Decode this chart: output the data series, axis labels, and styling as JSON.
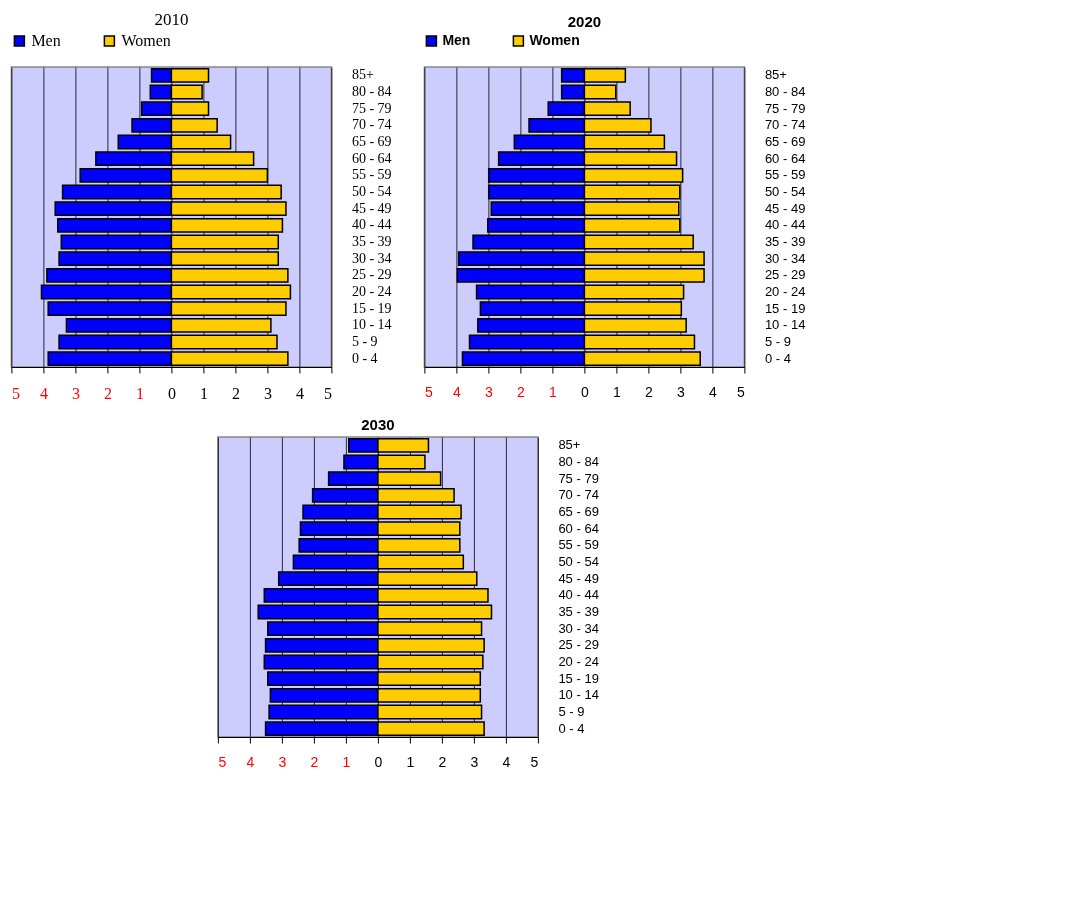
{
  "chart_data": [
    {
      "type": "bar",
      "orientation": "horizontal",
      "stacked": true,
      "title": "2010",
      "legend": "top",
      "grid": "x",
      "categories": [
        "85+",
        "80 - 84",
        "75 - 79",
        "70 - 74",
        "65 - 69",
        "60 - 64",
        "55 - 59",
        "50 - 54",
        "45 - 49",
        "40 - 44",
        "35 - 39",
        "30 - 34",
        "25 - 29",
        "20 - 24",
        "15 - 19",
        "10 - 14",
        "5 - 9",
        "0 - 4"
      ],
      "series": [
        {
          "name": "Men",
          "color": "#0000ff",
          "values": [
            -0.62,
            -0.66,
            -0.93,
            -1.23,
            -1.66,
            -2.36,
            -2.85,
            -3.4,
            -3.63,
            -3.55,
            -3.44,
            -3.51,
            -3.89,
            -4.06,
            -3.85,
            -3.28,
            -3.51,
            -3.85
          ]
        },
        {
          "name": "Women",
          "color": "#ffcc00",
          "values": [
            1.16,
            0.96,
            1.16,
            1.43,
            1.85,
            2.57,
            3.0,
            3.43,
            3.58,
            3.47,
            3.34,
            3.34,
            3.64,
            3.72,
            3.58,
            3.11,
            3.3,
            3.64
          ]
        }
      ],
      "xlim": [
        -5,
        5
      ],
      "xticks": [
        {
          "value": -5,
          "label": "5"
        },
        {
          "value": -4,
          "label": "4"
        },
        {
          "value": -3,
          "label": "3"
        },
        {
          "value": -2,
          "label": "2"
        },
        {
          "value": -1,
          "label": "1"
        },
        0,
        1,
        2,
        3,
        4,
        5
      ]
    },
    {
      "type": "bar",
      "orientation": "horizontal",
      "stacked": true,
      "title": "2020",
      "legend": "top",
      "grid": "x",
      "categories": [
        "85+",
        "80 - 84",
        "75 - 79",
        "70 - 74",
        "65 - 69",
        "60 - 64",
        "55 - 59",
        "50 - 54",
        "45 - 49",
        "40 - 44",
        "35 - 39",
        "30 - 34",
        "25 - 29",
        "20 - 24",
        "15 - 19",
        "10 - 14",
        "5 - 9",
        "0 - 4"
      ],
      "series": [
        {
          "name": "Men",
          "color": "#0000ff",
          "values": [
            -0.71,
            -0.71,
            -1.13,
            -1.73,
            -2.19,
            -2.68,
            -2.99,
            -2.99,
            -2.91,
            -3.02,
            -3.48,
            -3.93,
            -3.97,
            -3.37,
            -3.25,
            -3.33,
            -3.59,
            -3.81
          ]
        },
        {
          "name": "Women",
          "color": "#ffcc00",
          "values": [
            1.28,
            0.98,
            1.43,
            2.08,
            2.5,
            2.88,
            3.07,
            2.98,
            2.95,
            2.98,
            3.4,
            3.74,
            3.74,
            3.1,
            3.03,
            3.18,
            3.44,
            3.62
          ]
        }
      ],
      "xlim": [
        -5,
        5
      ],
      "xticks": [
        {
          "value": -5,
          "label": "5"
        },
        {
          "value": -4,
          "label": "4"
        },
        {
          "value": -3,
          "label": "3"
        },
        {
          "value": -2,
          "label": "2"
        },
        {
          "value": -1,
          "label": "1"
        },
        0,
        1,
        2,
        3,
        4,
        5
      ]
    },
    {
      "type": "bar",
      "orientation": "horizontal",
      "stacked": true,
      "title": "2030",
      "grid": "x",
      "categories": [
        "85+",
        "80 - 84",
        "75 - 79",
        "70 - 74",
        "65 - 69",
        "60 - 64",
        "55 - 59",
        "50 - 54",
        "45 - 49",
        "40 - 44",
        "35 - 39",
        "30 - 34",
        "25 - 29",
        "20 - 24",
        "15 - 19",
        "10 - 14",
        "5 - 9",
        "0 - 4"
      ],
      "series": [
        {
          "color": "#0000ff",
          "values": [
            -0.91,
            -1.06,
            -1.54,
            -2.04,
            -2.34,
            -2.42,
            -2.46,
            -2.64,
            -3.1,
            -3.55,
            -3.74,
            -3.44,
            -3.51,
            -3.55,
            -3.44,
            -3.36,
            -3.4,
            -3.51
          ]
        },
        {
          "color": "#ffcc00",
          "values": [
            1.58,
            1.47,
            1.96,
            2.38,
            2.6,
            2.56,
            2.56,
            2.67,
            3.09,
            3.44,
            3.55,
            3.24,
            3.32,
            3.28,
            3.2,
            3.2,
            3.24,
            3.32
          ]
        }
      ],
      "xlim": [
        -5,
        5
      ],
      "xticks": [
        {
          "value": -5,
          "label": "5"
        },
        {
          "value": -4,
          "label": "4"
        },
        {
          "value": -3,
          "label": "3"
        },
        {
          "value": -2,
          "label": "2"
        },
        {
          "value": -1,
          "label": "1"
        },
        0,
        1,
        2,
        3,
        4,
        5
      ]
    }
  ]
}
